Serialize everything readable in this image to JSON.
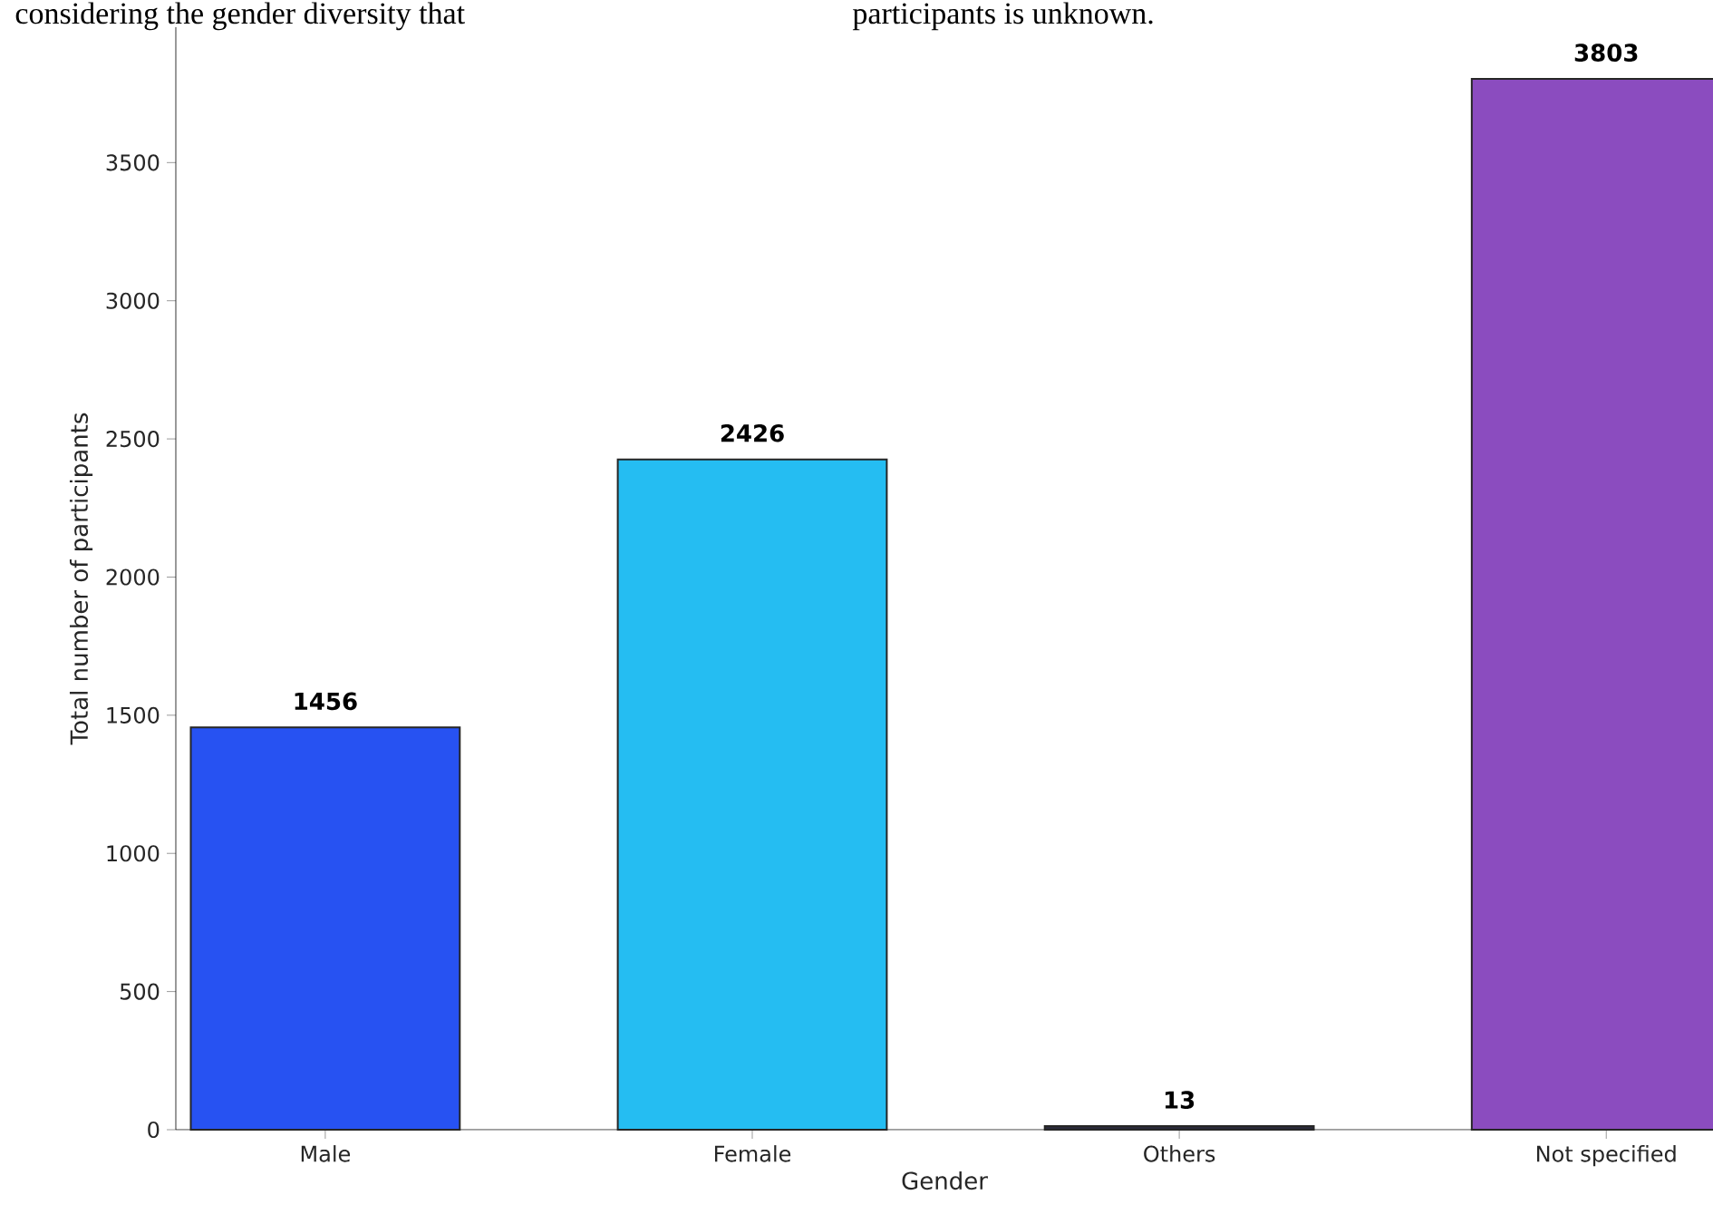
{
  "chart_data": {
    "type": "bar",
    "categories": [
      "Male",
      "Female",
      "Others",
      "Not specified"
    ],
    "values": [
      1456,
      2426,
      13,
      3803
    ],
    "colors": [
      "#2752f2",
      "#25bdf2",
      "#2a2a3a",
      "#8b4cbf"
    ],
    "xlabel": "Gender",
    "ylabel": "Total number of participants",
    "ylim": [
      0,
      3990
    ],
    "yticks": [
      0,
      500,
      1000,
      1500,
      2000,
      2500,
      3000,
      3500
    ],
    "data_labels": true,
    "grid": false,
    "annotations": [
      "considering the gender diversity that",
      "participants is unknown."
    ]
  }
}
